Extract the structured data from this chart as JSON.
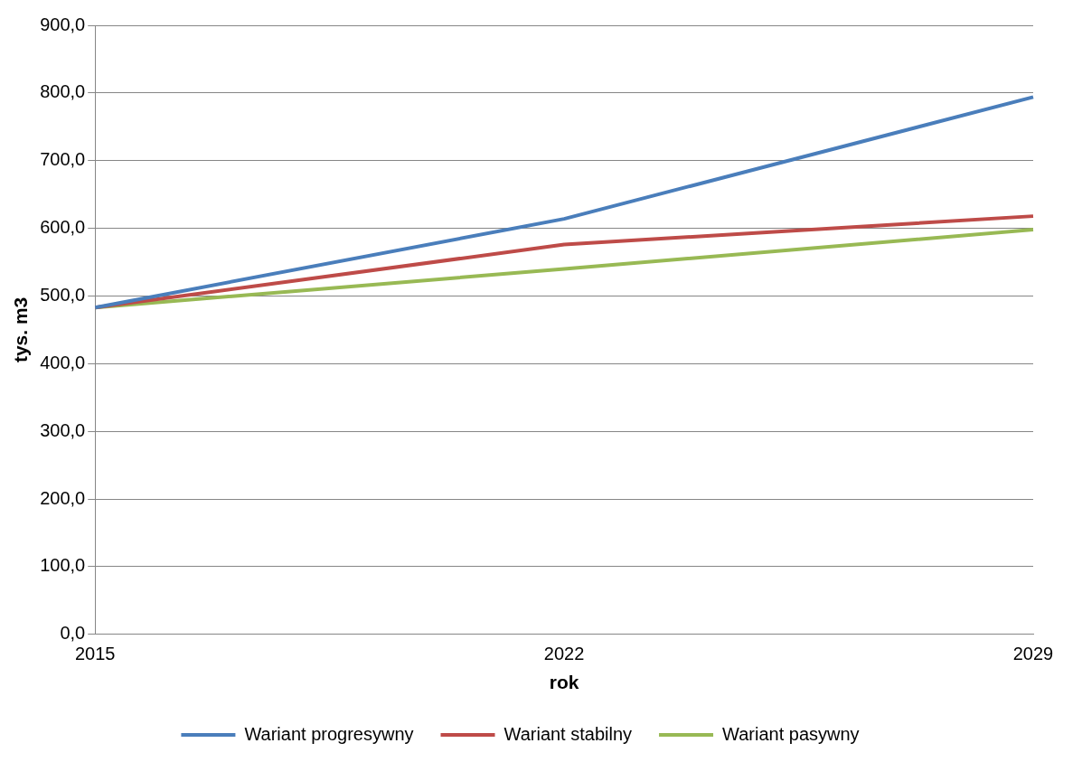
{
  "chart_data": {
    "type": "line",
    "xlabel": "rok",
    "ylabel": "tys. m3",
    "categories": [
      "2015",
      "2022",
      "2029"
    ],
    "series": [
      {
        "name": "Wariant progresywny",
        "color": "#4a7ebb",
        "values": [
          483,
          614,
          794
        ]
      },
      {
        "name": "Wariant stabilny",
        "color": "#be4b48",
        "values": [
          483,
          576,
          618
        ]
      },
      {
        "name": "Wariant pasywny",
        "color": "#98b954",
        "values": [
          483,
          540,
          598
        ]
      }
    ],
    "ylim": [
      0,
      900
    ],
    "yticks": [
      {
        "value": 0,
        "label": "0,0"
      },
      {
        "value": 100,
        "label": "100,0"
      },
      {
        "value": 200,
        "label": "200,0"
      },
      {
        "value": 300,
        "label": "300,0"
      },
      {
        "value": 400,
        "label": "400,0"
      },
      {
        "value": 500,
        "label": "500,0"
      },
      {
        "value": 600,
        "label": "600,0"
      },
      {
        "value": 700,
        "label": "700,0"
      },
      {
        "value": 800,
        "label": "800,0"
      },
      {
        "value": 900,
        "label": "900,0"
      }
    ],
    "grid": "y",
    "legend": "bottom",
    "marker": "none",
    "line_style": "solid"
  }
}
